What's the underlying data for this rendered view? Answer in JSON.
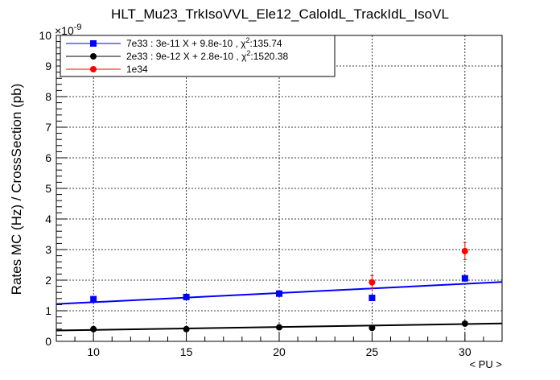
{
  "chart_data": {
    "type": "scatter",
    "title": "HLT_Mu23_TrkIsoVVL_Ele12_CaloIdL_TrackIdL_IsoVL",
    "xlabel": "< PU >",
    "ylabel": "Rates MC (Hz) / CrossSection (pb)",
    "y_exponent_label": "×10",
    "y_exponent_power": "-9",
    "xlim": [
      8,
      32
    ],
    "ylim": [
      0,
      10
    ],
    "x_ticks": [
      10,
      15,
      20,
      25,
      30
    ],
    "y_ticks": [
      0,
      1,
      2,
      3,
      4,
      5,
      6,
      7,
      8,
      9,
      10
    ],
    "grid": true,
    "legend_position": "top-left",
    "series": [
      {
        "name": "7e33 : 3e-11 X + 9.8e-10 , χ",
        "legend_suffix": ":135.74",
        "chi_sup": "2",
        "color": "#0000ff",
        "marker": "square",
        "x": [
          10,
          15,
          20,
          25,
          30
        ],
        "y": [
          1.38,
          1.45,
          1.56,
          1.42,
          2.06
        ],
        "yerr": [
          0.04,
          0.04,
          0.04,
          0.04,
          0.05
        ],
        "fit": {
          "slope": 0.03,
          "intercept": 0.98
        }
      },
      {
        "name": "2e33 : 9e-12 X + 2.8e-10 , χ",
        "legend_suffix": ":1520.38",
        "chi_sup": "2",
        "color": "#000000",
        "marker": "circle",
        "x": [
          10,
          15,
          20,
          25,
          30
        ],
        "y": [
          0.4,
          0.4,
          0.46,
          0.44,
          0.58
        ],
        "yerr": [
          0.02,
          0.02,
          0.02,
          0.02,
          0.02
        ],
        "fit": {
          "slope": 0.0095,
          "intercept": 0.28
        }
      },
      {
        "name": "1e34",
        "legend_suffix": "",
        "chi_sup": "",
        "color": "#ff0000",
        "marker": "circle",
        "x": [
          25,
          30
        ],
        "y": [
          1.93,
          2.95
        ],
        "yerr": [
          0.22,
          0.28
        ],
        "fit": null
      }
    ]
  }
}
